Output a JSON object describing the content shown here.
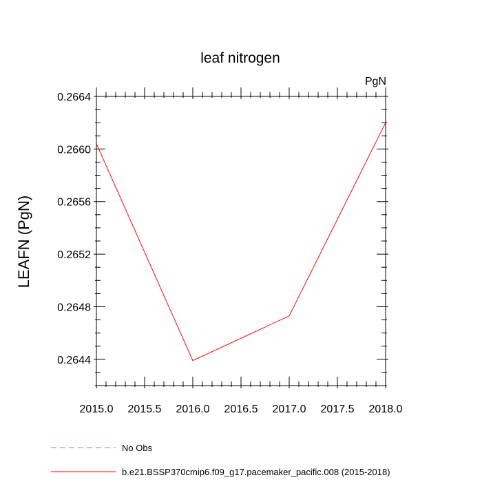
{
  "chart_data": {
    "type": "line",
    "title": "leaf nitrogen",
    "units_label": "PgN",
    "ylabel": "LEAFN  (PgN)",
    "xlabel": "",
    "xlim": [
      2015.0,
      2018.0
    ],
    "ylim": [
      0.2642,
      0.2664
    ],
    "x_ticks": [
      2015.0,
      2015.5,
      2016.0,
      2016.5,
      2017.0,
      2017.5,
      2018.0
    ],
    "x_tick_labels": [
      "2015.0",
      "2015.5",
      "2016.0",
      "2016.5",
      "2017.0",
      "2017.5",
      "2018.0"
    ],
    "y_ticks": [
      0.2644,
      0.2648,
      0.2652,
      0.2656,
      0.266,
      0.2664
    ],
    "y_tick_labels": [
      "0.2644",
      "0.2648",
      "0.2652",
      "0.2656",
      "0.2660",
      "0.2664"
    ],
    "grid": false,
    "series": [
      {
        "name": "b.e21.BSSP370cmip6.f09_g17.pacemaker_pacific.008 (2015-2018)",
        "color": "#ff0000",
        "dash": "solid",
        "x": [
          2015.0,
          2016.0,
          2017.0,
          2018.0
        ],
        "y": [
          0.26604,
          0.26439,
          0.26473,
          0.2662
        ]
      }
    ],
    "legend": {
      "position": "bottom-left",
      "entries": [
        {
          "label": "No Obs",
          "color": "#8080ff",
          "dash": "dashed"
        },
        {
          "label": "b.e21.BSSP370cmip6.f09_g17.pacemaker_pacific.008 (2015-2018)",
          "color": "#ff0000",
          "dash": "solid"
        }
      ]
    }
  }
}
